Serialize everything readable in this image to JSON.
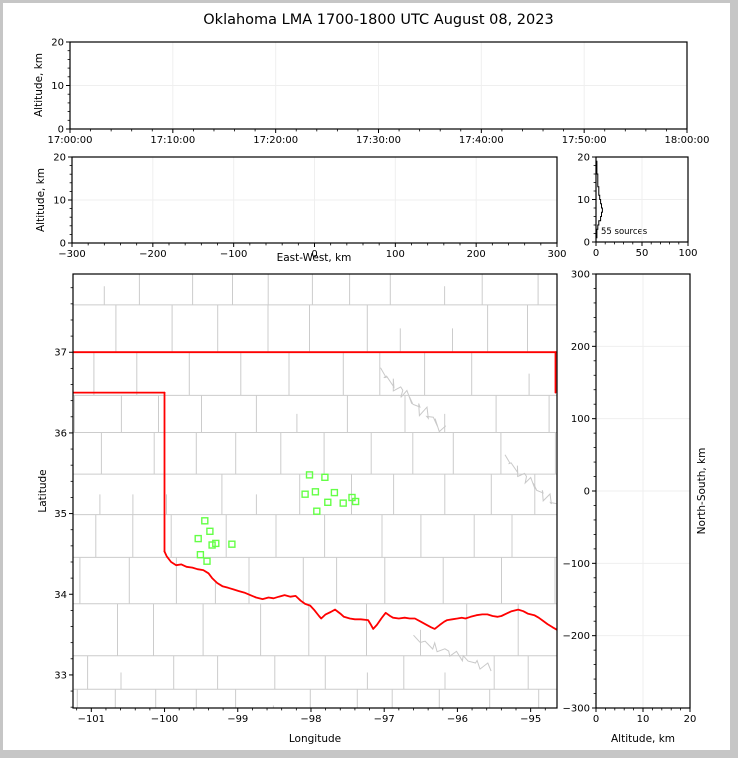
{
  "title": "Oklahoma LMA 1700-1800 UTC August 08, 2023",
  "colors": {
    "background": "#ffffff",
    "figure_border": "#c6c6c6",
    "axis": "#000000",
    "grid": "#efefef",
    "county_line": "#cccccc",
    "river_line": "#c9c9c9",
    "state_border": "#ff0000",
    "source_marker": "#64ff46",
    "histogram_line": "#000000"
  },
  "chart_data": [
    {
      "id": "time_height",
      "type": "scatter",
      "xlabel": "",
      "ylabel": "Altitude, km",
      "xlim": [
        0,
        3600
      ],
      "ylim": [
        0,
        20
      ],
      "xticks": [
        0,
        600,
        1200,
        1800,
        2400,
        3000,
        3600
      ],
      "xtick_labels": [
        "17:00:00",
        "17:10:00",
        "17:20:00",
        "17:30:00",
        "17:40:00",
        "17:50:00",
        "18:00:00"
      ],
      "yticks": [
        0,
        10,
        20
      ],
      "ytick_labels": [
        "0",
        "10",
        "20"
      ],
      "xminor": 120,
      "yminor": 2,
      "points": []
    },
    {
      "id": "east_west_height",
      "type": "scatter",
      "xlabel": "East-West, km",
      "ylabel": "Altitude, km",
      "xlim": [
        -300,
        300
      ],
      "ylim": [
        0,
        20
      ],
      "xticks": [
        -300,
        -200,
        -100,
        0,
        100,
        200,
        300
      ],
      "xtick_labels": [
        "−300",
        "−200",
        "−100",
        "0",
        "100",
        "200",
        "300"
      ],
      "yticks": [
        0,
        10,
        20
      ],
      "ytick_labels": [
        "0",
        "10",
        "20"
      ],
      "xminor": 20,
      "yminor": 2,
      "points": []
    },
    {
      "id": "altitude_histogram",
      "type": "line",
      "annotation": "55 sources",
      "xlim": [
        0,
        100
      ],
      "ylim": [
        0,
        20
      ],
      "xticks": [
        0,
        50,
        100
      ],
      "xtick_labels": [
        "0",
        "50",
        "100"
      ],
      "yticks": [
        0,
        10,
        20
      ],
      "ytick_labels": [
        "0",
        "10",
        "20"
      ],
      "xminor": 10,
      "yminor": 2,
      "profile_bin_km": 1,
      "profile_counts": [
        0,
        1,
        1,
        2,
        3,
        5,
        6,
        7,
        6,
        5,
        4,
        3,
        3,
        2,
        2,
        2,
        1,
        1,
        1,
        0
      ]
    },
    {
      "id": "plan_view_map",
      "type": "scatter",
      "xlabel": "Longitude",
      "ylabel": "Latitude",
      "xlim": [
        -101.25,
        -94.64
      ],
      "ylim": [
        32.59,
        37.97
      ],
      "xticks": [
        -101,
        -100,
        -99,
        -98,
        -97,
        -96,
        -95
      ],
      "xtick_labels": [
        "−101",
        "−100",
        "−99",
        "−98",
        "−97",
        "−96",
        "−95"
      ],
      "yticks": [
        33,
        34,
        35,
        36,
        37
      ],
      "ytick_labels": [
        "33",
        "34",
        "35",
        "36",
        "37"
      ],
      "xminor": 0.2,
      "yminor": 0.2,
      "sources_lonlat": [
        [
          -98.02,
          35.48
        ],
        [
          -97.81,
          35.45
        ],
        [
          -98.08,
          35.24
        ],
        [
          -97.94,
          35.27
        ],
        [
          -97.68,
          35.26
        ],
        [
          -97.77,
          35.14
        ],
        [
          -97.56,
          35.13
        ],
        [
          -97.44,
          35.2
        ],
        [
          -97.39,
          35.15
        ],
        [
          -97.92,
          35.03
        ],
        [
          -99.45,
          34.91
        ],
        [
          -99.38,
          34.78
        ],
        [
          -99.54,
          34.69
        ],
        [
          -99.35,
          34.61
        ],
        [
          -99.3,
          34.63
        ],
        [
          -99.08,
          34.62
        ],
        [
          -99.51,
          34.49
        ],
        [
          -99.42,
          34.41
        ]
      ],
      "state_border": {
        "north": [
          [
            -101.25,
            37.0
          ],
          [
            -94.64,
            37.0
          ]
        ],
        "northeast_edge": [
          [
            -94.66,
            37.0
          ],
          [
            -94.66,
            36.5
          ]
        ],
        "panhandle_north": [
          [
            -101.25,
            36.5
          ],
          [
            -100.0,
            36.5
          ]
        ],
        "panhandle_east": [
          [
            -100.0,
            36.5
          ],
          [
            -100.0,
            34.53
          ]
        ],
        "red_river": [
          [
            -100.0,
            34.53
          ],
          [
            -99.97,
            34.47
          ],
          [
            -99.91,
            34.4
          ],
          [
            -99.84,
            34.36
          ],
          [
            -99.77,
            34.37
          ],
          [
            -99.7,
            34.34
          ],
          [
            -99.62,
            34.33
          ],
          [
            -99.55,
            34.31
          ],
          [
            -99.47,
            34.3
          ],
          [
            -99.4,
            34.26
          ],
          [
            -99.35,
            34.2
          ],
          [
            -99.28,
            34.14
          ],
          [
            -99.21,
            34.1
          ],
          [
            -99.13,
            34.08
          ],
          [
            -99.06,
            34.06
          ],
          [
            -98.99,
            34.04
          ],
          [
            -98.91,
            34.02
          ],
          [
            -98.83,
            33.99
          ],
          [
            -98.75,
            33.96
          ],
          [
            -98.66,
            33.94
          ],
          [
            -98.58,
            33.96
          ],
          [
            -98.51,
            33.95
          ],
          [
            -98.44,
            33.97
          ],
          [
            -98.36,
            33.99
          ],
          [
            -98.28,
            33.97
          ],
          [
            -98.21,
            33.98
          ],
          [
            -98.14,
            33.92
          ],
          [
            -98.08,
            33.88
          ],
          [
            -98.01,
            33.86
          ],
          [
            -97.95,
            33.8
          ],
          [
            -97.89,
            33.73
          ],
          [
            -97.86,
            33.7
          ],
          [
            -97.8,
            33.75
          ],
          [
            -97.73,
            33.78
          ],
          [
            -97.67,
            33.81
          ],
          [
            -97.6,
            33.76
          ],
          [
            -97.55,
            33.72
          ],
          [
            -97.47,
            33.7
          ],
          [
            -97.4,
            33.69
          ],
          [
            -97.32,
            33.69
          ],
          [
            -97.22,
            33.68
          ],
          [
            -97.18,
            33.62
          ],
          [
            -97.15,
            33.57
          ],
          [
            -97.1,
            33.62
          ],
          [
            -97.04,
            33.7
          ],
          [
            -96.98,
            33.77
          ],
          [
            -96.92,
            33.73
          ],
          [
            -96.88,
            33.71
          ],
          [
            -96.8,
            33.7
          ],
          [
            -96.72,
            33.71
          ],
          [
            -96.65,
            33.7
          ],
          [
            -96.58,
            33.7
          ],
          [
            -96.5,
            33.66
          ],
          [
            -96.42,
            33.62
          ],
          [
            -96.36,
            33.59
          ],
          [
            -96.31,
            33.57
          ],
          [
            -96.24,
            33.62
          ],
          [
            -96.18,
            33.66
          ],
          [
            -96.14,
            33.68
          ],
          [
            -96.07,
            33.69
          ],
          [
            -96.0,
            33.7
          ],
          [
            -95.94,
            33.71
          ],
          [
            -95.89,
            33.7
          ],
          [
            -95.82,
            33.72
          ],
          [
            -95.74,
            33.74
          ],
          [
            -95.66,
            33.75
          ],
          [
            -95.59,
            33.75
          ],
          [
            -95.52,
            33.73
          ],
          [
            -95.45,
            33.72
          ],
          [
            -95.4,
            33.73
          ],
          [
            -95.33,
            33.76
          ],
          [
            -95.26,
            33.79
          ],
          [
            -95.17,
            33.81
          ],
          [
            -95.1,
            33.79
          ],
          [
            -95.04,
            33.76
          ],
          [
            -94.95,
            33.74
          ],
          [
            -94.89,
            33.71
          ],
          [
            -94.83,
            33.67
          ],
          [
            -94.77,
            33.63
          ],
          [
            -94.7,
            33.59
          ],
          [
            -94.64,
            33.56
          ]
        ]
      },
      "county_seed": 7
    },
    {
      "id": "north_south_height",
      "type": "scatter",
      "xlabel": "Altitude, km",
      "ylabel": "North-South, km",
      "xlim": [
        0,
        20
      ],
      "ylim": [
        -300,
        300
      ],
      "xticks": [
        0,
        10,
        20
      ],
      "xtick_labels": [
        "0",
        "10",
        "20"
      ],
      "yticks": [
        300,
        200,
        100,
        0,
        -100,
        -200,
        -300
      ],
      "ytick_labels": [
        "300",
        "200",
        "100",
        "0",
        "−100",
        "−200",
        "−300"
      ],
      "xminor": 2,
      "yminor": 20,
      "points": []
    }
  ]
}
